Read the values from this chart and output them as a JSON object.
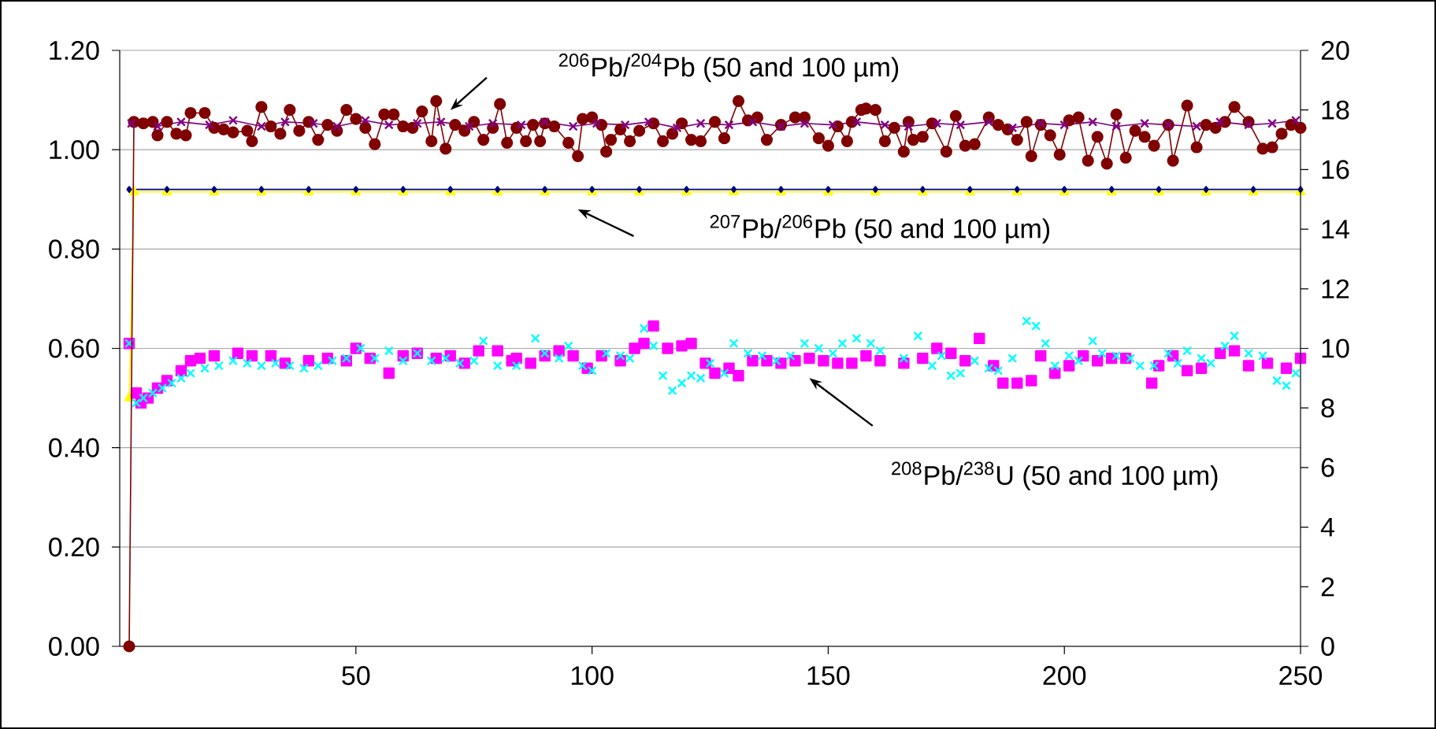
{
  "chart_data": {
    "type": "scatter",
    "xlim": [
      0,
      250
    ],
    "xticks": [
      50,
      100,
      150,
      200,
      250
    ],
    "ylim": [
      0,
      1.2
    ],
    "yticks": [
      {
        "value": 0,
        "label": "0.00"
      },
      {
        "value": 0.2,
        "label": "0.20"
      },
      {
        "value": 0.4,
        "label": "0.40"
      },
      {
        "value": 0.6,
        "label": "0.60"
      },
      {
        "value": 0.8,
        "label": "0.80"
      },
      {
        "value": 1.0,
        "label": "1.00"
      },
      {
        "value": 1.2,
        "label": "1.20"
      }
    ],
    "y2lim": [
      0,
      20
    ],
    "y2ticks": [
      0,
      2,
      4,
      6,
      8,
      10,
      12,
      14,
      16,
      18,
      20
    ],
    "grid": "y",
    "series": [
      {
        "type": "line",
        "axis": "y2",
        "marker": "circle",
        "color": "#800000",
        "x": [
          2,
          3,
          5,
          7,
          8,
          10,
          12,
          14,
          15,
          18,
          20,
          22,
          24,
          27,
          28,
          30,
          32,
          34,
          36,
          38,
          40,
          42,
          44,
          46,
          48,
          50,
          52,
          54,
          56,
          58,
          60,
          62,
          64,
          66,
          67,
          69,
          71,
          73,
          75,
          77,
          79,
          80.5,
          82,
          84,
          86,
          87.5,
          89,
          90,
          92,
          95,
          97,
          98,
          100,
          102,
          103,
          104,
          106,
          108,
          110,
          113,
          115,
          117,
          119,
          121,
          123,
          126,
          128,
          131,
          133,
          135,
          137,
          140,
          143,
          145,
          148,
          150,
          152,
          154,
          155,
          157,
          158,
          160,
          162,
          164,
          166,
          167,
          168,
          170,
          172,
          175,
          177,
          179,
          181,
          184,
          186,
          188,
          190,
          192,
          193,
          195,
          197,
          199,
          201,
          203,
          205,
          207,
          209,
          211,
          213,
          215,
          217,
          219,
          222,
          223,
          226,
          228,
          230,
          232,
          234,
          236,
          239,
          242,
          244,
          246,
          248,
          250
        ],
        "values": [
          0,
          17.6,
          17.55,
          17.6,
          17.15,
          17.6,
          17.2,
          17.15,
          17.9,
          17.9,
          17.4,
          17.35,
          17.25,
          17.3,
          16.95,
          18.1,
          17.45,
          17.2,
          18.0,
          17.3,
          17.6,
          17.0,
          17.5,
          17.3,
          18.0,
          17.7,
          17.4,
          16.85,
          17.85,
          17.85,
          17.45,
          17.4,
          17.95,
          16.95,
          18.3,
          16.7,
          17.5,
          17.3,
          17.6,
          17.0,
          17.4,
          18.2,
          16.9,
          17.4,
          16.95,
          17.5,
          16.95,
          17.55,
          17.45,
          16.9,
          16.45,
          17.7,
          17.75,
          17.5,
          16.6,
          17.0,
          17.35,
          16.95,
          17.3,
          17.55,
          16.95,
          17.2,
          17.55,
          17.0,
          16.95,
          17.6,
          17.05,
          18.3,
          17.65,
          17.75,
          17.0,
          17.5,
          17.75,
          17.75,
          17.05,
          16.8,
          17.45,
          16.95,
          17.6,
          18.0,
          18.05,
          18.0,
          16.95,
          17.4,
          16.6,
          17.6,
          17.0,
          17.1,
          17.55,
          16.6,
          17.8,
          16.8,
          16.85,
          17.75,
          17.5,
          17.35,
          17.0,
          17.6,
          16.45,
          17.5,
          17.15,
          16.5,
          17.65,
          17.75,
          16.3,
          17.1,
          16.2,
          17.85,
          16.4,
          17.3,
          17.1,
          16.8,
          17.5,
          16.3,
          18.15,
          16.75,
          17.5,
          17.4,
          17.6,
          18.1,
          17.6,
          16.7,
          16.75,
          17.2,
          17.5,
          17.4
        ]
      },
      {
        "type": "line",
        "axis": "y2",
        "marker": "cross",
        "color": "#800080",
        "x": [
          2.5,
          8,
          13,
          19,
          24,
          30,
          35,
          41,
          46,
          52,
          57,
          63,
          68,
          74,
          79,
          85,
          90,
          96,
          101,
          107,
          112,
          118,
          123,
          129,
          134,
          140,
          145,
          151,
          156,
          162,
          167,
          173,
          178,
          184,
          189,
          195,
          200,
          206,
          211,
          217,
          222,
          228,
          233,
          239,
          244,
          249
        ],
        "values": [
          17.55,
          17.45,
          17.6,
          17.5,
          17.65,
          17.45,
          17.6,
          17.55,
          17.45,
          17.65,
          17.5,
          17.55,
          17.6,
          17.45,
          17.55,
          17.5,
          17.6,
          17.45,
          17.55,
          17.5,
          17.6,
          17.4,
          17.55,
          17.5,
          17.6,
          17.45,
          17.55,
          17.5,
          17.6,
          17.5,
          17.45,
          17.55,
          17.5,
          17.6,
          17.4,
          17.55,
          17.5,
          17.6,
          17.45,
          17.55,
          17.5,
          17.45,
          17.6,
          17.5,
          17.55,
          17.65
        ]
      },
      {
        "type": "line",
        "marker": "triangle",
        "color": "#ffff00",
        "x": [
          2,
          3,
          10,
          20,
          30,
          40,
          50,
          60,
          70,
          80,
          90,
          100,
          110,
          120,
          130,
          140,
          150,
          160,
          170,
          180,
          190,
          200,
          210,
          220,
          230,
          240,
          250
        ],
        "values": [
          0.5,
          0.915,
          0.915,
          0.915,
          0.915,
          0.915,
          0.915,
          0.915,
          0.915,
          0.915,
          0.915,
          0.915,
          0.915,
          0.915,
          0.915,
          0.915,
          0.915,
          0.915,
          0.915,
          0.915,
          0.915,
          0.915,
          0.915,
          0.915,
          0.915,
          0.915,
          0.915
        ]
      },
      {
        "type": "line",
        "marker": "diamond",
        "color": "#000080",
        "x": [
          2,
          10,
          20,
          30,
          40,
          50,
          60,
          70,
          80,
          90,
          100,
          110,
          120,
          130,
          140,
          150,
          160,
          170,
          180,
          190,
          200,
          210,
          220,
          230,
          240,
          250
        ],
        "values": [
          0.92,
          0.92,
          0.92,
          0.92,
          0.92,
          0.92,
          0.92,
          0.92,
          0.92,
          0.92,
          0.92,
          0.92,
          0.92,
          0.92,
          0.92,
          0.92,
          0.92,
          0.92,
          0.92,
          0.92,
          0.92,
          0.92,
          0.92,
          0.92,
          0.92,
          0.92
        ]
      },
      {
        "marker": "square",
        "color": "#ff00ff",
        "x": [
          2,
          3.5,
          4.5,
          6,
          8,
          10,
          13,
          15,
          17,
          20,
          25,
          28,
          32,
          35,
          40,
          44,
          48,
          50,
          53,
          57,
          60,
          63,
          67,
          70,
          73,
          76,
          80,
          83,
          84,
          87,
          90,
          93,
          96,
          99,
          102,
          106,
          109,
          111,
          113,
          116,
          119,
          121,
          124,
          126,
          129,
          131,
          134,
          137,
          140,
          143,
          146,
          149,
          152,
          155,
          158,
          161,
          166,
          170,
          173,
          176,
          179,
          182,
          185,
          187,
          190,
          193,
          195,
          198,
          201,
          204,
          207,
          210,
          213,
          218.5,
          220,
          223,
          226,
          229,
          233,
          236,
          239,
          243,
          247,
          250
        ],
        "values": [
          0.61,
          0.51,
          0.49,
          0.5,
          0.52,
          0.535,
          0.555,
          0.575,
          0.58,
          0.585,
          0.59,
          0.585,
          0.585,
          0.57,
          0.575,
          0.58,
          0.575,
          0.6,
          0.58,
          0.55,
          0.585,
          0.59,
          0.58,
          0.585,
          0.57,
          0.595,
          0.595,
          0.575,
          0.58,
          0.57,
          0.585,
          0.595,
          0.585,
          0.56,
          0.585,
          0.575,
          0.6,
          0.61,
          0.645,
          0.6,
          0.605,
          0.61,
          0.57,
          0.55,
          0.56,
          0.545,
          0.575,
          0.575,
          0.57,
          0.575,
          0.58,
          0.575,
          0.57,
          0.57,
          0.585,
          0.575,
          0.57,
          0.58,
          0.6,
          0.59,
          0.575,
          0.62,
          0.565,
          0.53,
          0.53,
          0.535,
          0.585,
          0.55,
          0.565,
          0.585,
          0.575,
          0.58,
          0.58,
          0.53,
          0.565,
          0.585,
          0.555,
          0.56,
          0.59,
          0.595,
          0.565,
          0.57,
          0.56,
          0.58
        ]
      },
      {
        "marker": "cross",
        "color": "#00ffff",
        "x": [
          2,
          3.5,
          5,
          7,
          9,
          11,
          13,
          15,
          18,
          21,
          24,
          27,
          30,
          33,
          36,
          39,
          42,
          45,
          48,
          51,
          54,
          57,
          60,
          63,
          66,
          69,
          72,
          75,
          77,
          80,
          84,
          88,
          90,
          93,
          95,
          98,
          100,
          103,
          106,
          108,
          111,
          113,
          115,
          117,
          119,
          121,
          123,
          125,
          128,
          130,
          133,
          136,
          139,
          142,
          145,
          148,
          151,
          153,
          156,
          159,
          161,
          166,
          169,
          172,
          174,
          176,
          178,
          181,
          184,
          186,
          189,
          192,
          194,
          196,
          198,
          201,
          203,
          206,
          208,
          211,
          214,
          216,
          219,
          222,
          224,
          226,
          229,
          231,
          234,
          236,
          239,
          242,
          245,
          247,
          249
        ],
        "values": [
          0.61,
          0.49,
          0.5,
          0.51,
          0.52,
          0.53,
          0.54,
          0.55,
          0.56,
          0.565,
          0.575,
          0.57,
          0.565,
          0.57,
          0.565,
          0.56,
          0.565,
          0.575,
          0.58,
          0.6,
          0.58,
          0.595,
          0.575,
          0.59,
          0.575,
          0.58,
          0.57,
          0.575,
          0.615,
          0.565,
          0.565,
          0.62,
          0.59,
          0.58,
          0.605,
          0.565,
          0.555,
          0.59,
          0.585,
          0.58,
          0.64,
          0.605,
          0.545,
          0.515,
          0.53,
          0.545,
          0.54,
          0.57,
          0.55,
          0.61,
          0.59,
          0.585,
          0.575,
          0.585,
          0.61,
          0.6,
          0.59,
          0.61,
          0.62,
          0.61,
          0.595,
          0.58,
          0.625,
          0.565,
          0.585,
          0.545,
          0.55,
          0.575,
          0.56,
          0.555,
          0.58,
          0.655,
          0.645,
          0.61,
          0.565,
          0.585,
          0.575,
          0.615,
          0.59,
          0.585,
          0.58,
          0.565,
          0.565,
          0.59,
          0.57,
          0.595,
          0.58,
          0.57,
          0.605,
          0.625,
          0.59,
          0.585,
          0.535,
          0.525,
          0.55
        ]
      }
    ],
    "annotations": [
      "$^{206}$Pb/$^{204}$Pb (50 and 100 µm)",
      "$^{207}$Pb/$^{206}$Pb (50 and 100 µm)",
      "$^{208}$Pb/$^{238}$U (50 and 100 µm)"
    ]
  }
}
